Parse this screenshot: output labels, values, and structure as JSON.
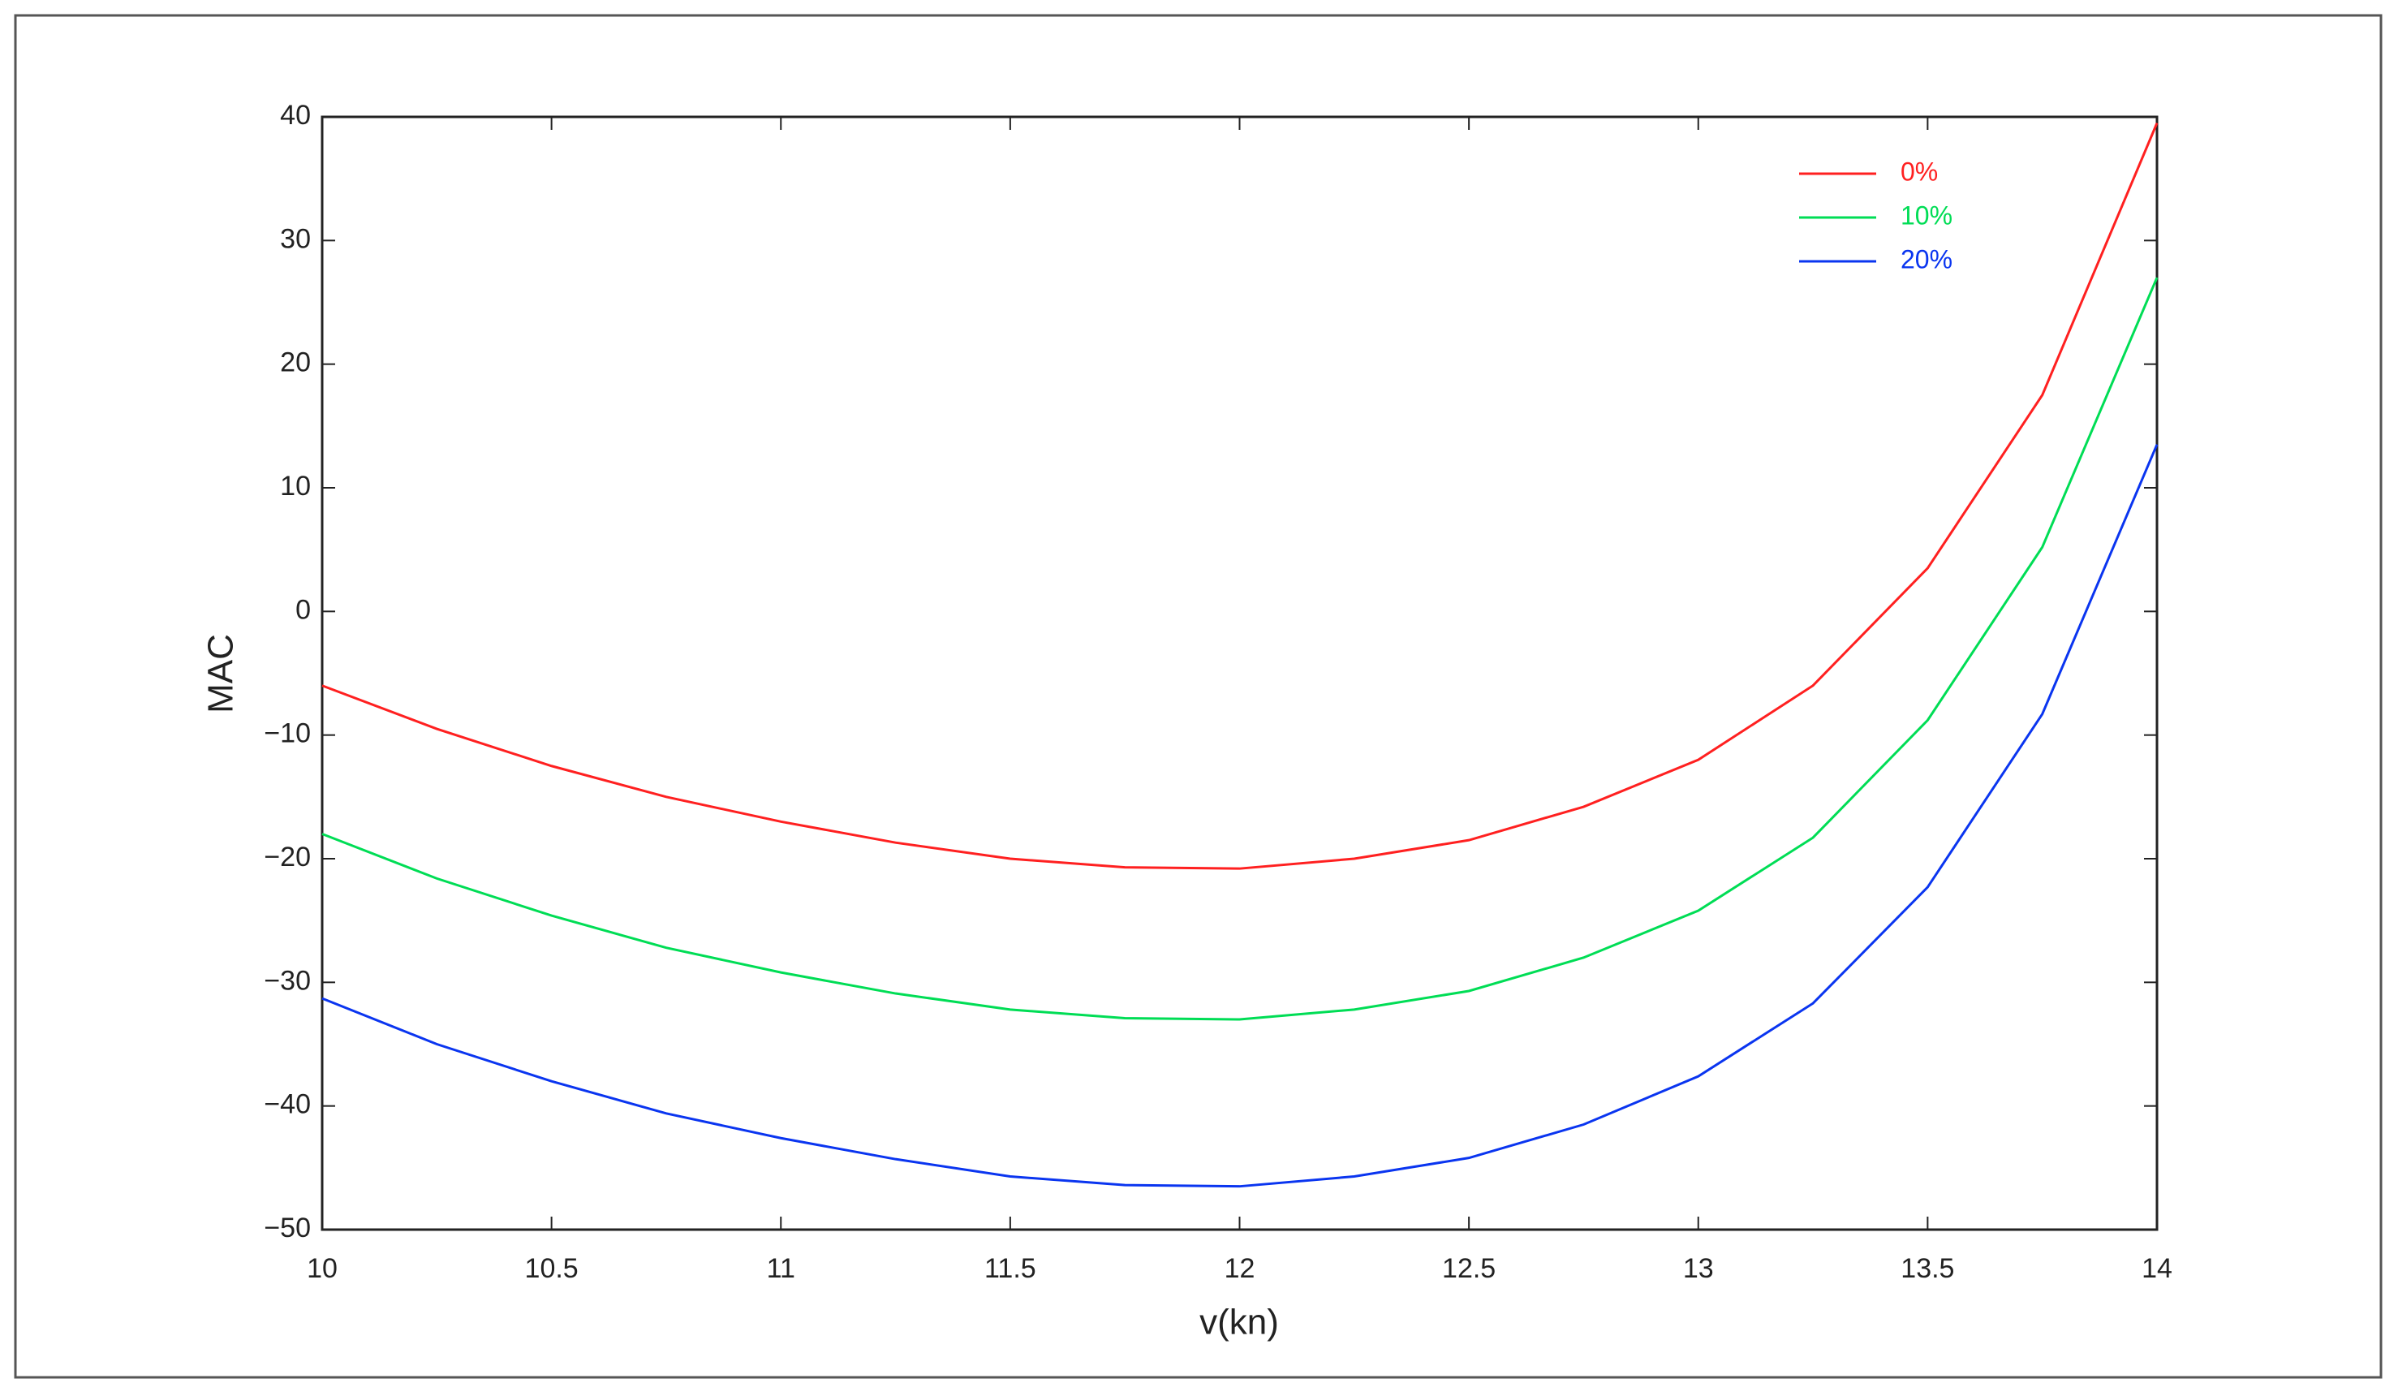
{
  "chart_data": {
    "type": "line",
    "x_label": "v(kn)",
    "y_label": "MAC",
    "x": [
      10,
      10.25,
      10.5,
      10.75,
      11,
      11.25,
      11.5,
      11.75,
      12,
      12.25,
      12.5,
      12.75,
      13,
      13.25,
      13.5,
      13.75,
      14
    ],
    "series": [
      {
        "name": "0%",
        "color": "#ff2020",
        "values": [
          -6,
          -9.5,
          -12.5,
          -15,
          -17,
          -18.7,
          -20,
          -20.7,
          -20.8,
          -20,
          -18.5,
          -15.8,
          -12,
          -6,
          3.5,
          17.5,
          39.5
        ]
      },
      {
        "name": "10%",
        "color": "#00dd55",
        "values": [
          -18,
          -21.6,
          -24.6,
          -27.2,
          -29.2,
          -30.9,
          -32.2,
          -32.9,
          -33,
          -32.2,
          -30.7,
          -28,
          -24.2,
          -18.3,
          -8.8,
          5.2,
          27
        ]
      },
      {
        "name": "20%",
        "color": "#0a35f0",
        "values": [
          -31.3,
          -35,
          -38,
          -40.6,
          -42.6,
          -44.3,
          -45.7,
          -46.4,
          -46.5,
          -45.7,
          -44.2,
          -41.5,
          -37.6,
          -31.7,
          -22.3,
          -8.3,
          13.5
        ]
      }
    ],
    "xlim": [
      10,
      14
    ],
    "xticks": [
      10,
      10.5,
      11,
      11.5,
      12,
      12.5,
      13,
      13.5,
      14
    ],
    "ylim": [
      -50,
      40
    ],
    "yticks": [
      {
        "value": -50,
        "label": "−50"
      },
      {
        "value": -40,
        "label": "−40"
      },
      {
        "value": -30,
        "label": "−30"
      },
      {
        "value": -20,
        "label": "−20"
      },
      {
        "value": -10,
        "label": "−10"
      },
      0,
      10,
      20,
      30,
      40
    ],
    "grid": false,
    "legend": "upper right"
  }
}
